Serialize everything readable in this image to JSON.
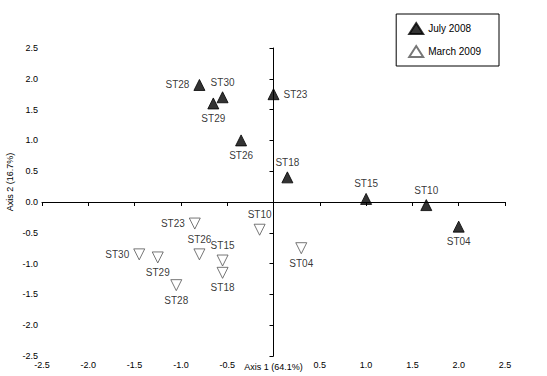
{
  "chart_data": {
    "type": "scatter",
    "x_label": "Axis 1 (64.1%)",
    "y_label": "Axis 2 (16.7%)",
    "xlim": [
      -2.5,
      2.5
    ],
    "ylim": [
      -2.5,
      2.5
    ],
    "xticks": [
      -2.5,
      {
        "value": -2,
        "label": "-2.0"
      },
      -1.5,
      {
        "value": -1,
        "label": "-1.0"
      },
      -0.5,
      0.5,
      {
        "value": 1,
        "label": "1.0"
      },
      1.5,
      {
        "value": 2,
        "label": "2.0"
      },
      2.5
    ],
    "yticks": [
      -2.5,
      {
        "value": -2,
        "label": "-2.0"
      },
      -1.5,
      {
        "value": -1,
        "label": "-1.0"
      },
      -0.5,
      {
        "value": 0,
        "label": "0.0"
      },
      0.5,
      {
        "value": 1,
        "label": "1.0"
      },
      1.5,
      {
        "value": 2,
        "label": "2.0"
      },
      2.5
    ],
    "grid": false,
    "legend": "top-right",
    "series": [
      {
        "name": "July 2008",
        "color": "#000000",
        "marker": "triangle",
        "labels": [
          "ST28",
          "ST30",
          "ST29",
          "ST23",
          "ST26",
          "ST18",
          "ST15",
          "ST10",
          "ST04"
        ],
        "x": [
          -0.8,
          -0.55,
          -0.65,
          0.0,
          -0.35,
          0.15,
          1.0,
          1.65,
          2.0
        ],
        "y": [
          1.9,
          1.7,
          1.6,
          1.75,
          1.0,
          0.4,
          0.05,
          -0.05,
          -0.4
        ]
      },
      {
        "name": "March 2009",
        "color": "#555555",
        "marker": "triangle-down-open",
        "labels": [
          "ST23",
          "ST10",
          "ST26",
          "ST15",
          "ST18",
          "ST04",
          "ST30",
          "ST29",
          "ST28"
        ],
        "x": [
          -0.85,
          -0.15,
          -0.8,
          -0.55,
          -0.55,
          0.3,
          -1.45,
          -1.25,
          -1.05
        ],
        "y": [
          -0.35,
          -0.45,
          -0.85,
          -0.95,
          -1.15,
          -0.75,
          -0.85,
          -0.9,
          -1.35
        ]
      }
    ]
  }
}
